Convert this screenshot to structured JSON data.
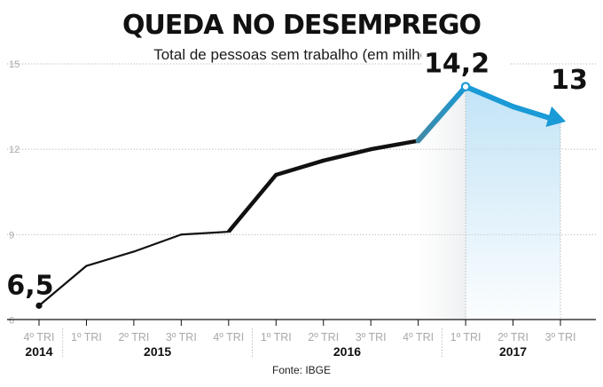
{
  "colors": {
    "black_line": "#111111",
    "accent_blue": "#1a9ad6",
    "teal_mid": "#3f8aa6",
    "grid": "#9a9a9a",
    "tick_text": "#a9a9a9",
    "fill_blue": "#bfe2f6"
  },
  "chart_data": {
    "type": "line",
    "title": "QUEDA NO DESEMPREGO",
    "subtitle": "Total de pessoas sem trabalho (em milhões)",
    "source": "Fonte: IBGE",
    "ylim": [
      5.7,
      15.5
    ],
    "yticks": [
      {
        "value": 6,
        "label": "6"
      },
      {
        "value": 9,
        "label": "9"
      },
      {
        "value": 12,
        "label": "12"
      },
      {
        "value": 15,
        "label": "15"
      }
    ],
    "categories": [
      "4º TRI",
      "1º TRI",
      "2º TRI",
      "3º TRI",
      "4º TRI",
      "1º TRI",
      "2º TRI",
      "3º TRI",
      "4º TRI",
      "1º TRI",
      "2º TRI",
      "3º TRI"
    ],
    "years": [
      {
        "label": "2014",
        "from": 0,
        "to": 0
      },
      {
        "label": "2015",
        "from": 1,
        "to": 4
      },
      {
        "label": "2016",
        "from": 5,
        "to": 8
      },
      {
        "label": "2017",
        "from": 9,
        "to": 11
      }
    ],
    "series": [
      {
        "name": "Total de pessoas sem trabalho",
        "values": [
          6.5,
          7.9,
          8.4,
          9.0,
          9.1,
          11.1,
          11.6,
          12.0,
          12.3,
          14.2,
          13.5,
          13.0
        ]
      }
    ],
    "annotations": [
      {
        "index": 0,
        "label": "6,5"
      },
      {
        "index": 9,
        "label": "14,2"
      },
      {
        "index": 11,
        "label": "13"
      }
    ]
  }
}
